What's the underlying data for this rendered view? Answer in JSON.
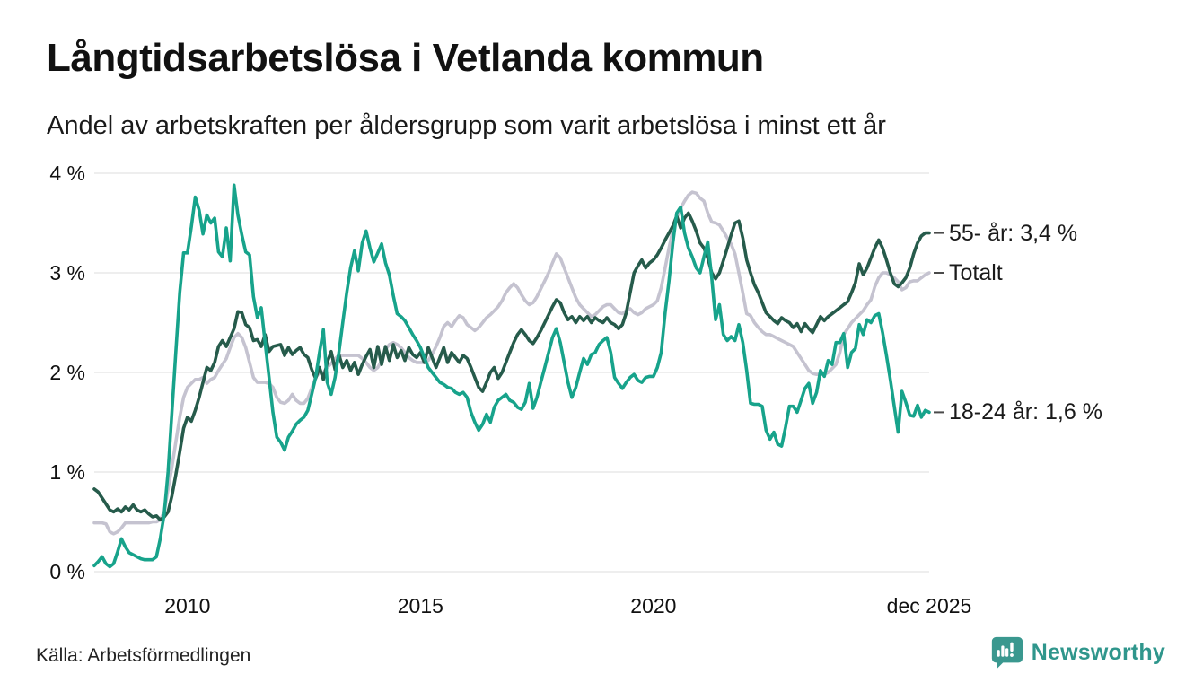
{
  "header": {
    "title": "Långtidsarbetslösa i Vetlanda kommun",
    "subtitle": "Andel av arbetskraften per åldersgrupp som varit arbetslösa i minst ett år"
  },
  "footer": {
    "source": "Källa: Arbetsförmedlingen",
    "brand": "Newsworthy",
    "brand_color": "#2f968c",
    "logo_color": "#3a988f"
  },
  "chart_data": {
    "type": "line",
    "title": "Långtidsarbetslösa i Vetlanda kommun",
    "subtitle": "Andel av arbetskraften per åldersgrupp som varit arbetslösa i minst ett år",
    "x_start": "2008-01",
    "x_end": "2025-12",
    "x_interval": "monthly",
    "grid": true,
    "ylim": [
      0,
      4
    ],
    "grid_color": "#e4e4e4",
    "annotation_dash_color": "#4a4a4a",
    "y_ticks": [
      {
        "label": "0 %",
        "value": 0
      },
      {
        "label": "1 %",
        "value": 1
      },
      {
        "label": "2 %",
        "value": 2
      },
      {
        "label": "3 %",
        "value": 3
      },
      {
        "label": "4 %",
        "value": 4
      }
    ],
    "x_ticks": [
      {
        "label": "2010",
        "month_index": 24
      },
      {
        "label": "2015",
        "month_index": 84
      },
      {
        "label": "2020",
        "month_index": 144
      },
      {
        "label": "dec 2025",
        "month_index": 215
      }
    ],
    "series": [
      {
        "name": "Totalt",
        "end_label": "Totalt",
        "end_value": 3.0,
        "color": "#c5c3d0",
        "values": [
          0.49,
          0.49,
          0.49,
          0.48,
          0.4,
          0.38,
          0.4,
          0.44,
          0.49,
          0.49,
          0.49,
          0.49,
          0.49,
          0.49,
          0.49,
          0.5,
          0.5,
          0.52,
          0.6,
          0.83,
          1.05,
          1.3,
          1.55,
          1.75,
          1.85,
          1.89,
          1.93,
          1.93,
          1.95,
          1.89,
          1.93,
          1.95,
          2.02,
          2.08,
          2.14,
          2.25,
          2.35,
          2.39,
          2.35,
          2.25,
          2.1,
          1.95,
          1.9,
          1.9,
          1.9,
          1.89,
          1.85,
          1.75,
          1.7,
          1.69,
          1.72,
          1.78,
          1.72,
          1.69,
          1.69,
          1.74,
          1.84,
          1.95,
          2.0,
          2.0,
          2.05,
          2.09,
          2.14,
          2.17,
          2.17,
          2.17,
          2.17,
          2.17,
          2.17,
          2.14,
          2.1,
          2.05,
          2.02,
          2.05,
          2.12,
          2.23,
          2.28,
          2.3,
          2.28,
          2.25,
          2.2,
          2.15,
          2.12,
          2.1,
          2.1,
          2.1,
          2.12,
          2.18,
          2.26,
          2.35,
          2.46,
          2.5,
          2.46,
          2.52,
          2.57,
          2.55,
          2.48,
          2.45,
          2.42,
          2.45,
          2.5,
          2.55,
          2.58,
          2.62,
          2.66,
          2.72,
          2.8,
          2.85,
          2.89,
          2.85,
          2.78,
          2.72,
          2.68,
          2.7,
          2.76,
          2.84,
          2.92,
          3.0,
          3.1,
          3.19,
          3.15,
          3.05,
          2.95,
          2.85,
          2.75,
          2.68,
          2.64,
          2.6,
          2.56,
          2.58,
          2.62,
          2.66,
          2.68,
          2.68,
          2.64,
          2.6,
          2.59,
          2.62,
          2.64,
          2.6,
          2.58,
          2.6,
          2.64,
          2.66,
          2.68,
          2.72,
          2.85,
          3.05,
          3.25,
          3.43,
          3.55,
          3.65,
          3.72,
          3.78,
          3.81,
          3.8,
          3.75,
          3.72,
          3.6,
          3.51,
          3.5,
          3.48,
          3.42,
          3.35,
          3.29,
          3.19,
          3.0,
          2.8,
          2.59,
          2.57,
          2.5,
          2.45,
          2.41,
          2.38,
          2.38,
          2.36,
          2.34,
          2.32,
          2.3,
          2.28,
          2.26,
          2.2,
          2.14,
          2.08,
          2.02,
          1.99,
          1.98,
          1.98,
          1.98,
          2.0,
          2.04,
          2.08,
          2.2,
          2.38,
          2.44,
          2.5,
          2.54,
          2.58,
          2.62,
          2.68,
          2.73,
          2.86,
          2.95,
          3.0,
          3.0,
          2.98,
          2.95,
          2.91,
          2.83,
          2.85,
          2.91,
          2.92,
          2.92,
          2.95,
          2.98,
          3.0
        ]
      },
      {
        "name": "55- år",
        "end_label": "55- år: 3,4 %",
        "end_value": 3.4,
        "color": "#265b4b",
        "values": [
          0.83,
          0.8,
          0.74,
          0.68,
          0.62,
          0.6,
          0.63,
          0.6,
          0.65,
          0.62,
          0.67,
          0.62,
          0.6,
          0.62,
          0.58,
          0.55,
          0.56,
          0.52,
          0.55,
          0.6,
          0.76,
          0.97,
          1.2,
          1.44,
          1.55,
          1.51,
          1.62,
          1.75,
          1.9,
          2.05,
          2.02,
          2.1,
          2.26,
          2.32,
          2.26,
          2.35,
          2.44,
          2.61,
          2.6,
          2.48,
          2.45,
          2.32,
          2.33,
          2.26,
          2.38,
          2.21,
          2.26,
          2.27,
          2.28,
          2.17,
          2.25,
          2.18,
          2.22,
          2.25,
          2.18,
          2.15,
          2.03,
          1.94,
          2.05,
          1.93,
          2.1,
          2.21,
          2.03,
          2.18,
          2.05,
          2.12,
          2.02,
          2.1,
          1.98,
          2.08,
          2.16,
          2.23,
          2.05,
          2.26,
          2.08,
          2.26,
          2.12,
          2.28,
          2.15,
          2.22,
          2.12,
          2.25,
          2.18,
          2.15,
          2.2,
          2.1,
          2.25,
          2.15,
          2.05,
          2.15,
          2.25,
          2.1,
          2.2,
          2.15,
          2.1,
          2.17,
          2.14,
          2.05,
          1.95,
          1.85,
          1.81,
          1.9,
          2.0,
          2.05,
          1.94,
          2.0,
          2.1,
          2.2,
          2.3,
          2.38,
          2.43,
          2.38,
          2.32,
          2.29,
          2.35,
          2.42,
          2.5,
          2.58,
          2.66,
          2.73,
          2.7,
          2.6,
          2.53,
          2.56,
          2.5,
          2.56,
          2.52,
          2.56,
          2.5,
          2.55,
          2.52,
          2.5,
          2.55,
          2.5,
          2.48,
          2.44,
          2.48,
          2.6,
          2.8,
          3.0,
          3.07,
          3.13,
          3.05,
          3.1,
          3.13,
          3.18,
          3.25,
          3.33,
          3.4,
          3.47,
          3.57,
          3.45,
          3.55,
          3.6,
          3.52,
          3.42,
          3.3,
          3.25,
          3.15,
          3.0,
          2.94,
          3.0,
          3.12,
          3.25,
          3.38,
          3.5,
          3.52,
          3.35,
          3.13,
          3.0,
          2.88,
          2.8,
          2.7,
          2.6,
          2.56,
          2.52,
          2.49,
          2.55,
          2.52,
          2.5,
          2.45,
          2.49,
          2.41,
          2.49,
          2.44,
          2.4,
          2.48,
          2.56,
          2.52,
          2.56,
          2.59,
          2.62,
          2.65,
          2.68,
          2.71,
          2.8,
          2.9,
          3.09,
          2.98,
          3.05,
          3.15,
          3.25,
          3.33,
          3.25,
          3.13,
          3.0,
          2.89,
          2.86,
          2.9,
          2.95,
          3.05,
          3.19,
          3.3,
          3.37,
          3.4,
          3.4
        ]
      },
      {
        "name": "18-24 år",
        "end_label": "18-24 år: 1,6 %",
        "end_value": 1.6,
        "color": "#17a38b",
        "values": [
          0.06,
          0.1,
          0.15,
          0.08,
          0.05,
          0.08,
          0.2,
          0.33,
          0.25,
          0.19,
          0.17,
          0.15,
          0.13,
          0.12,
          0.12,
          0.12,
          0.15,
          0.33,
          0.58,
          1.0,
          1.6,
          2.2,
          2.8,
          3.2,
          3.2,
          3.46,
          3.76,
          3.63,
          3.39,
          3.58,
          3.5,
          3.55,
          3.21,
          3.16,
          3.45,
          3.12,
          3.88,
          3.58,
          3.38,
          3.21,
          3.18,
          2.76,
          2.55,
          2.65,
          2.3,
          1.95,
          1.6,
          1.35,
          1.3,
          1.22,
          1.35,
          1.41,
          1.48,
          1.52,
          1.55,
          1.62,
          1.78,
          1.95,
          2.2,
          2.43,
          1.9,
          1.78,
          1.95,
          2.2,
          2.5,
          2.8,
          3.05,
          3.22,
          3.02,
          3.3,
          3.42,
          3.25,
          3.11,
          3.2,
          3.29,
          3.1,
          2.98,
          2.77,
          2.59,
          2.56,
          2.52,
          2.45,
          2.38,
          2.32,
          2.25,
          2.15,
          2.05,
          2.0,
          1.95,
          1.9,
          1.88,
          1.85,
          1.84,
          1.8,
          1.78,
          1.8,
          1.75,
          1.6,
          1.5,
          1.42,
          1.48,
          1.58,
          1.5,
          1.65,
          1.72,
          1.75,
          1.78,
          1.72,
          1.7,
          1.65,
          1.63,
          1.7,
          1.89,
          1.64,
          1.75,
          1.9,
          2.05,
          2.2,
          2.35,
          2.44,
          2.3,
          2.1,
          1.9,
          1.75,
          1.85,
          2.0,
          2.14,
          2.08,
          2.18,
          2.2,
          2.28,
          2.32,
          2.35,
          2.2,
          1.95,
          1.89,
          1.84,
          1.9,
          1.95,
          1.98,
          1.92,
          1.9,
          1.95,
          1.96,
          1.96,
          2.05,
          2.2,
          2.6,
          2.92,
          3.3,
          3.6,
          3.66,
          3.4,
          3.25,
          3.16,
          3.05,
          3.0,
          3.16,
          3.31,
          2.95,
          2.53,
          2.68,
          2.38,
          2.32,
          2.36,
          2.32,
          2.48,
          2.3,
          2.02,
          1.69,
          1.68,
          1.68,
          1.66,
          1.42,
          1.33,
          1.4,
          1.28,
          1.26,
          1.45,
          1.66,
          1.66,
          1.6,
          1.72,
          1.84,
          1.89,
          1.69,
          1.8,
          2.02,
          1.96,
          2.12,
          2.08,
          2.3,
          2.3,
          2.39,
          2.05,
          2.2,
          2.24,
          2.48,
          2.38,
          2.53,
          2.5,
          2.57,
          2.59,
          2.4,
          2.17,
          1.93,
          1.66,
          1.4,
          1.81,
          1.7,
          1.57,
          1.56,
          1.67,
          1.55,
          1.62,
          1.6
        ]
      }
    ]
  }
}
